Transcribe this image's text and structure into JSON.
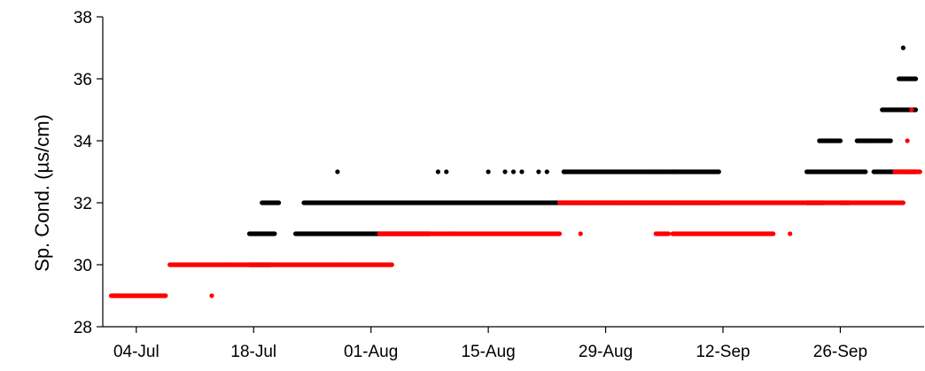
{
  "chart_data": {
    "type": "scatter",
    "title": "",
    "xlabel": "",
    "ylabel": "Sp. Cond. (µs/cm)",
    "xlim": [
      "2023-06-30",
      "2023-10-06"
    ],
    "ylim": [
      28,
      38
    ],
    "yticks": [
      28,
      30,
      32,
      34,
      36,
      38
    ],
    "xticks": [
      {
        "date": "2023-07-04",
        "label": "04-Jul"
      },
      {
        "date": "2023-07-18",
        "label": "18-Jul"
      },
      {
        "date": "2023-08-01",
        "label": "01-Aug"
      },
      {
        "date": "2023-08-15",
        "label": "15-Aug"
      },
      {
        "date": "2023-08-29",
        "label": "29-Aug"
      },
      {
        "date": "2023-09-12",
        "label": "12-Sep"
      },
      {
        "date": "2023-09-26",
        "label": "26-Sep"
      }
    ],
    "grid": false,
    "legend": "none",
    "series": [
      {
        "color": "#000000",
        "segments": [
          {
            "start": "2023-07-17T12:00",
            "end": "2023-07-20T12:00",
            "y": 31
          },
          {
            "start": "2023-07-17T12:00",
            "end": "2023-07-20T00:00",
            "y": 30
          },
          {
            "start": "2023-07-21T00:00",
            "end": "2023-07-21T00:00",
            "y": 30
          },
          {
            "start": "2023-07-19T00:00",
            "end": "2023-07-21T00:00",
            "y": 32
          },
          {
            "start": "2023-07-23T00:00",
            "end": "2023-08-08T00:00",
            "y": 31
          },
          {
            "start": "2023-07-24T00:00",
            "end": "2023-09-11T12:00",
            "y": 32
          },
          {
            "start": "2023-08-24T00:00",
            "end": "2023-09-11T12:00",
            "y": 33
          },
          {
            "start": "2023-09-22T00:00",
            "end": "2023-09-29T00:00",
            "y": 33
          },
          {
            "start": "2023-09-22T00:00",
            "end": "2023-09-24T00:00",
            "y": 32
          },
          {
            "start": "2023-09-26T00:00",
            "end": "2023-09-27T00:00",
            "y": 32
          },
          {
            "start": "2023-09-23T12:00",
            "end": "2023-09-26T00:00",
            "y": 34
          },
          {
            "start": "2023-09-28T00:00",
            "end": "2023-10-02T00:00",
            "y": 34
          },
          {
            "start": "2023-09-30T00:00",
            "end": "2023-10-05T00:00",
            "y": 33
          },
          {
            "start": "2023-10-01T00:00",
            "end": "2023-10-05T00:00",
            "y": 35
          },
          {
            "start": "2023-10-03T00:00",
            "end": "2023-10-05T00:00",
            "y": 36
          }
        ],
        "points": [
          {
            "x": "2023-07-28T00:00",
            "y": 33
          },
          {
            "x": "2023-08-06T00:00",
            "y": 31
          },
          {
            "x": "2023-08-09T00:00",
            "y": 33
          },
          {
            "x": "2023-08-10T00:00",
            "y": 33
          },
          {
            "x": "2023-08-11T00:00",
            "y": 31
          },
          {
            "x": "2023-08-15T00:00",
            "y": 33
          },
          {
            "x": "2023-08-17T00:00",
            "y": 33
          },
          {
            "x": "2023-08-18T00:00",
            "y": 33
          },
          {
            "x": "2023-08-19T00:00",
            "y": 33
          },
          {
            "x": "2023-08-21T00:00",
            "y": 33
          },
          {
            "x": "2023-08-22T00:00",
            "y": 33
          },
          {
            "x": "2023-09-04T00:00",
            "y": 33
          },
          {
            "x": "2023-09-06T00:00",
            "y": 33
          },
          {
            "x": "2023-09-29T12:00",
            "y": 34
          },
          {
            "x": "2023-10-03T12:00",
            "y": 37
          }
        ]
      },
      {
        "color": "#ff0000",
        "segments": [
          {
            "start": "2023-07-01T00:00",
            "end": "2023-07-07T12:00",
            "y": 29
          },
          {
            "start": "2023-07-08T00:00",
            "end": "2023-08-03T12:00",
            "y": 30
          },
          {
            "start": "2023-08-02T00:00",
            "end": "2023-08-08T00:00",
            "y": 31
          },
          {
            "start": "2023-08-08T00:00",
            "end": "2023-08-23T12:00",
            "y": 31
          },
          {
            "start": "2023-09-04T00:00",
            "end": "2023-09-05T12:00",
            "y": 31
          },
          {
            "start": "2023-09-06T00:00",
            "end": "2023-09-18T00:00",
            "y": 31
          },
          {
            "start": "2023-08-23T12:00",
            "end": "2023-09-11T12:00",
            "y": 32
          },
          {
            "start": "2023-09-11T12:00",
            "end": "2023-10-03T12:00",
            "y": 32
          },
          {
            "start": "2023-10-02T12:00",
            "end": "2023-10-05T12:00",
            "y": 33
          }
        ],
        "points": [
          {
            "x": "2023-07-13T00:00",
            "y": 29
          },
          {
            "x": "2023-08-26T00:00",
            "y": 31
          },
          {
            "x": "2023-09-20T00:00",
            "y": 31
          },
          {
            "x": "2023-10-04T00:00",
            "y": 34
          },
          {
            "x": "2023-10-04T12:00",
            "y": 35
          }
        ]
      }
    ]
  }
}
